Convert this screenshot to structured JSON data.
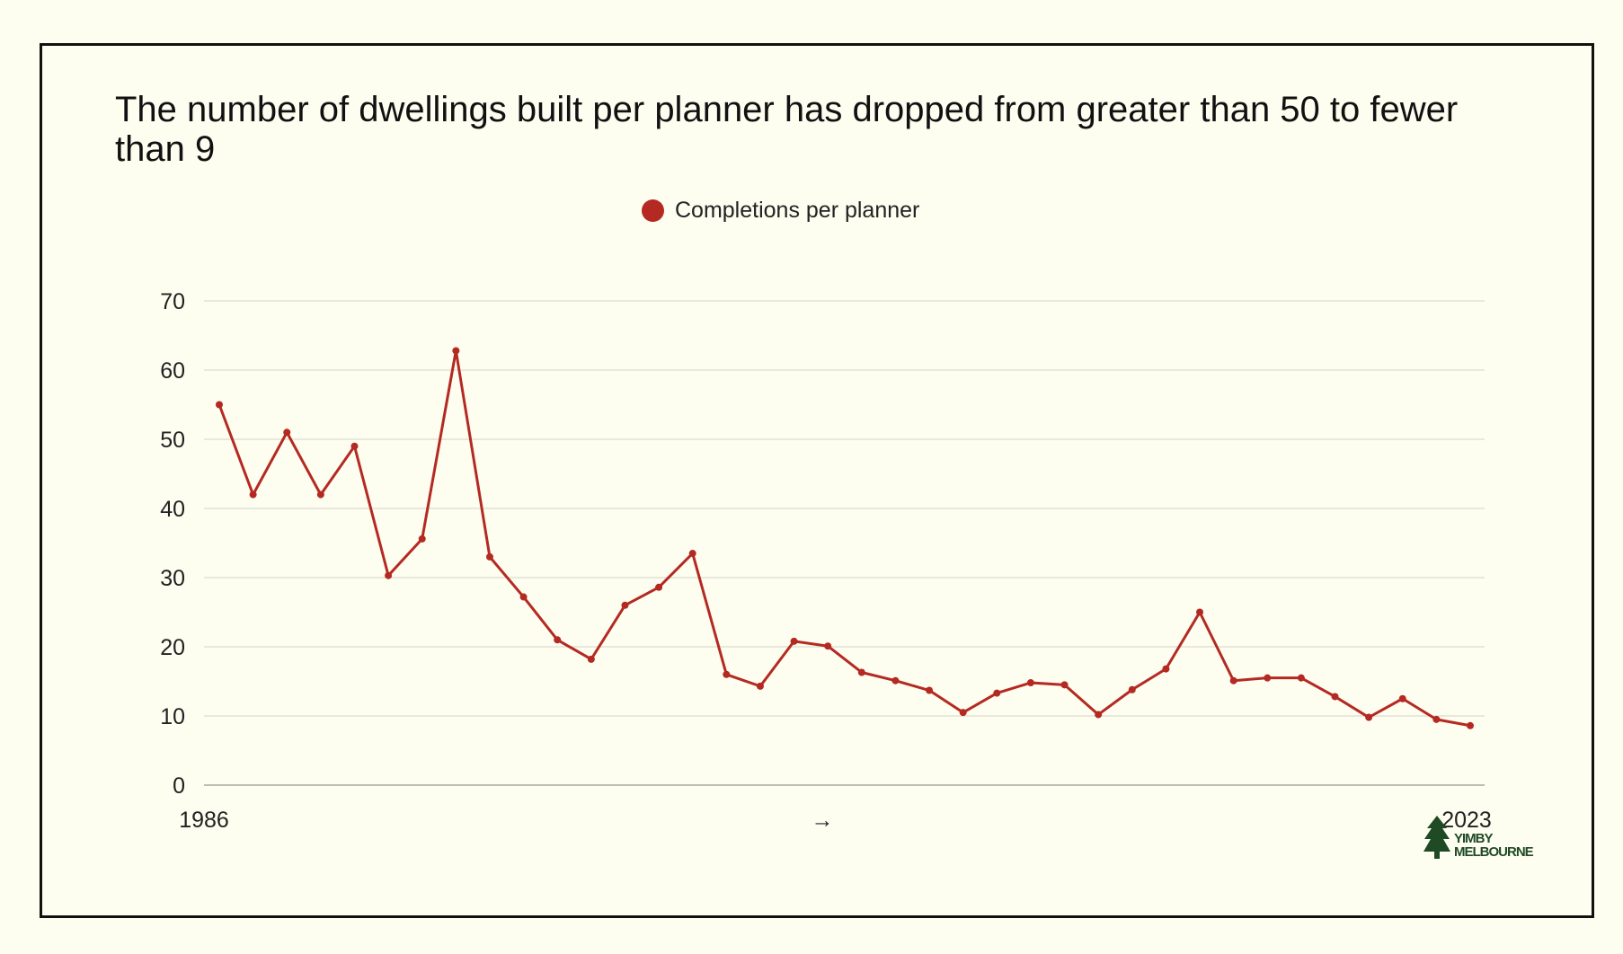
{
  "title": "The number of dwellings built per planner has dropped from greater than 50 to fewer than 9",
  "colors": {
    "series": "#b42a22",
    "background": "#fdfdf0",
    "gridline": "#e2e2d6",
    "logo": "#1f4a24"
  },
  "chart_data": {
    "type": "line",
    "title": "The number of dwellings built per planner has dropped from greater than 50 to fewer than 9",
    "x": [
      1986,
      1987,
      1988,
      1989,
      1990,
      1991,
      1992,
      1993,
      1994,
      1995,
      1996,
      1997,
      1998,
      1999,
      2000,
      2001,
      2002,
      2003,
      2004,
      2005,
      2006,
      2007,
      2008,
      2009,
      2010,
      2011,
      2012,
      2013,
      2014,
      2015,
      2016,
      2017,
      2018,
      2019,
      2020,
      2021,
      2022,
      2023
    ],
    "series": [
      {
        "name": "Completions per planner",
        "values": [
          55,
          42,
          51,
          42,
          49,
          30.3,
          35.6,
          62.8,
          33,
          27.2,
          21,
          18.2,
          26,
          28.6,
          33.5,
          16,
          14.3,
          20.8,
          20.1,
          16.3,
          15.1,
          13.7,
          10.5,
          13.3,
          14.8,
          14.5,
          10.2,
          13.8,
          16.8,
          25,
          15.1,
          15.5,
          15.5,
          12.8,
          9.8,
          12.5,
          9.5,
          8.6
        ]
      }
    ],
    "ylim": [
      0,
      70
    ],
    "yticks": [
      0,
      10,
      20,
      30,
      40,
      50,
      60,
      70
    ],
    "xtick_labels": [
      "1986",
      "2023"
    ],
    "x_axis_arrow": "→",
    "xlabel": "",
    "ylabel": "",
    "grid": true,
    "legend": "top-center"
  },
  "logo": {
    "line1": "YIMBY",
    "line2": "MELBOURNE"
  }
}
